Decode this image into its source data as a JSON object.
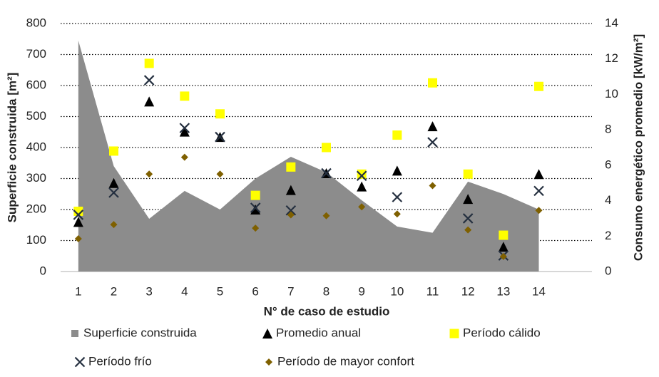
{
  "chart_data": {
    "type": "combo",
    "x_label": "N° de caso de estudio",
    "y_label": "Superficie construida  [m²]",
    "y2_label": "Consumo energético promedio [kW/m²]",
    "categories": [
      "1",
      "2",
      "3",
      "4",
      "5",
      "6",
      "7",
      "8",
      "9",
      "10",
      "11",
      "12",
      "13",
      "14",
      null
    ],
    "ylim": [
      0,
      800
    ],
    "yticks": [
      0,
      100,
      200,
      300,
      400,
      500,
      600,
      700,
      800
    ],
    "y2lim": [
      0,
      14
    ],
    "y2ticks": [
      0,
      2,
      4,
      6,
      8,
      10,
      12,
      14
    ],
    "grid": true,
    "series": [
      {
        "name": "Superficie construida",
        "kind": "area",
        "color": "#8c8c8c",
        "values": [
          745,
          340,
          170,
          260,
          200,
          300,
          370,
          320,
          230,
          145,
          125,
          290,
          250,
          200,
          null
        ]
      },
      {
        "name": "Promedio anual",
        "kind": "marker",
        "marker": "triangle",
        "color": "#000000",
        "axis": "y2",
        "values": [
          2.8,
          5.0,
          9.6,
          7.9,
          7.6,
          3.5,
          4.6,
          5.55,
          4.8,
          5.7,
          8.2,
          4.1,
          1.4,
          5.5,
          null
        ]
      },
      {
        "name": "Período cálido",
        "kind": "marker",
        "marker": "square",
        "color": "#ffff00",
        "axis": "y2",
        "values": [
          3.4,
          6.8,
          11.75,
          9.9,
          8.9,
          4.3,
          5.9,
          7.0,
          5.5,
          7.7,
          10.65,
          5.5,
          2.05,
          10.45,
          null
        ]
      },
      {
        "name": "Período frío",
        "kind": "marker",
        "marker": "x",
        "color": "#253040",
        "axis": "y2",
        "values": [
          3.2,
          4.45,
          10.8,
          8.1,
          7.6,
          3.6,
          3.45,
          5.55,
          5.4,
          4.2,
          7.3,
          3.0,
          0.9,
          4.55,
          null
        ]
      },
      {
        "name": "Período de mayor confort",
        "kind": "marker",
        "marker": "diamond",
        "color": "#7f6000",
        "axis": "y2",
        "values": [
          1.85,
          2.65,
          5.5,
          6.45,
          5.5,
          2.45,
          3.2,
          3.15,
          3.65,
          3.25,
          4.85,
          2.35,
          0.85,
          3.45,
          null
        ]
      }
    ]
  }
}
